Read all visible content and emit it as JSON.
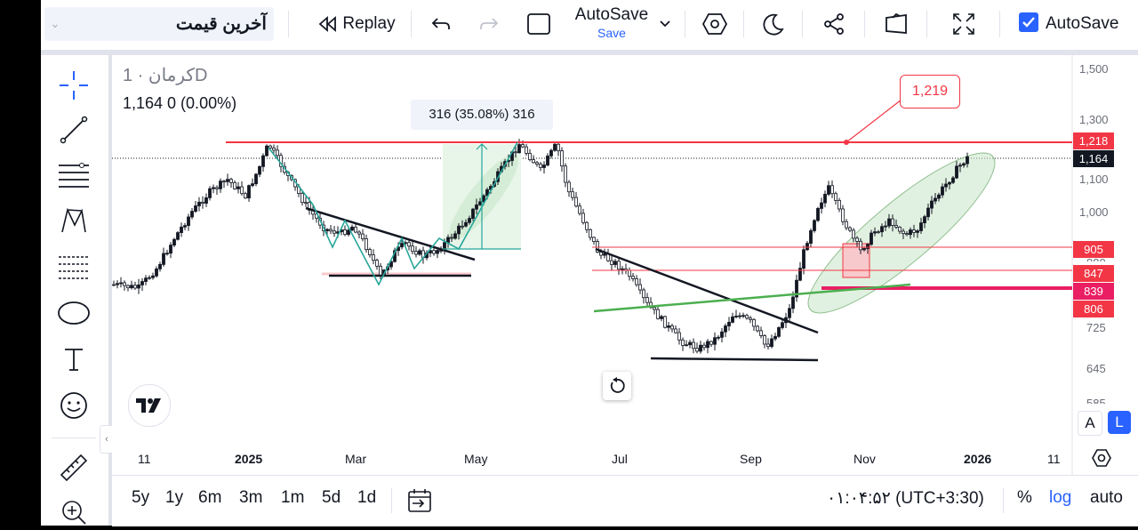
{
  "toolbar": {
    "symbol_name": "آخرین قیمت",
    "replay_label": "Replay",
    "autosave_title": "AutoSave",
    "autosave_sub": "Save",
    "autosave_check_label": "AutoSave",
    "autosave_checked": true
  },
  "legend": {
    "symbol_line": "کرمان · 1D",
    "price_line": "1,164  0 (0.00%)"
  },
  "price_axis": {
    "labels": [
      "1,500",
      "1,300",
      "1,100",
      "1,000",
      "725",
      "645",
      "585"
    ],
    "badges": [
      {
        "value": "1,218",
        "color": "#f23645"
      },
      {
        "value": "1,164",
        "color": "#131722"
      },
      {
        "value": "905",
        "color": "#f23645"
      },
      {
        "value": "847",
        "color": "#f23645"
      },
      {
        "value": "839",
        "color": "#e91e63"
      },
      {
        "value": "806",
        "color": "#f23645"
      }
    ],
    "hidden_label": "880"
  },
  "time_axis": {
    "labels": [
      "11",
      "2025",
      "Mar",
      "May",
      "Jul",
      "Sep",
      "Nov",
      "2026",
      "11"
    ]
  },
  "annotations": {
    "measure_label": "316 (35.08%) 316",
    "callout_label": "1,219"
  },
  "scale_buttons": {
    "a_label": "A",
    "l_label": "L"
  },
  "bottom": {
    "ranges": [
      "5y",
      "1y",
      "6m",
      "3m",
      "1m",
      "5d",
      "1d"
    ],
    "clock": "۰۱:۰۴:۵۲ (UTC+3:30)",
    "percent_label": "%",
    "log_label": "log",
    "auto_label": "auto"
  },
  "colors": {
    "accent": "#2962ff",
    "red_line": "#f23645",
    "green_line": "#4caf50",
    "ellipse_fill": "#c8e6c9"
  },
  "icons": [
    "undo-icon",
    "redo-icon",
    "square-icon",
    "hexagon-icon",
    "moon-icon",
    "share-icon",
    "snapshot-icon",
    "fullscreen-icon",
    "crosshair-icon",
    "trendline-icon",
    "fib-icon",
    "pattern-icon",
    "projection-icon",
    "ellipse-icon",
    "text-icon",
    "emoji-icon",
    "ruler-icon",
    "zoom-in-icon",
    "calendar-icon",
    "settings-icon",
    "reset-icon",
    "logo-icon"
  ]
}
